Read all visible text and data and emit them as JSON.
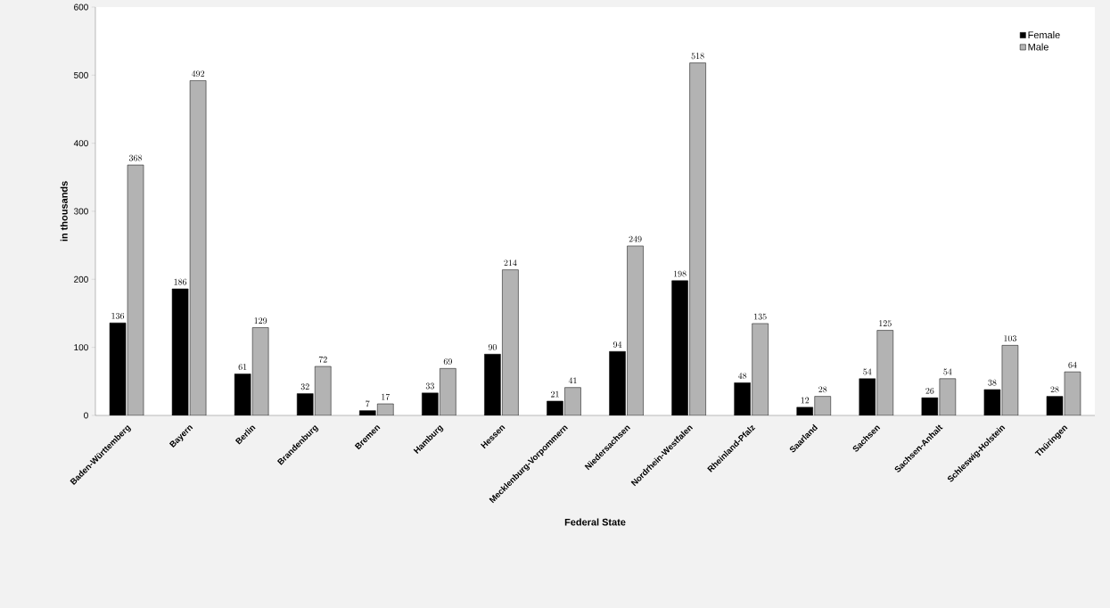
{
  "chart_data": {
    "type": "bar",
    "xlabel": "Federal State",
    "ylabel": "in thousands",
    "categories": [
      "Baden-Württemberg",
      "Bayern",
      "Berlin",
      "Brandenburg",
      "Bremen",
      "Hamburg",
      "Hessen",
      "Mecklenburg-Vorpommern",
      "Niedersachsen",
      "Nordrhein-Westfalen",
      "Rheinland-Pfalz",
      "Saarland",
      "Sachsen",
      "Sachsen-Anhalt",
      "Schleswig-Holstein",
      "Thüringen"
    ],
    "series": [
      {
        "name": "Female",
        "color": "#000000",
        "values": [
          136,
          186,
          61,
          32,
          7,
          33,
          90,
          21,
          94,
          198,
          48,
          12,
          54,
          26,
          38,
          28
        ]
      },
      {
        "name": "Male",
        "color": "#b3b3b3",
        "values": [
          368,
          492,
          129,
          72,
          17,
          69,
          214,
          41,
          249,
          518,
          135,
          28,
          125,
          54,
          103,
          64
        ]
      }
    ],
    "ylim": [
      0,
      600
    ],
    "yticks": [
      0,
      100,
      200,
      300,
      400,
      500,
      600
    ],
    "data_labels": true,
    "legend": "top right"
  }
}
